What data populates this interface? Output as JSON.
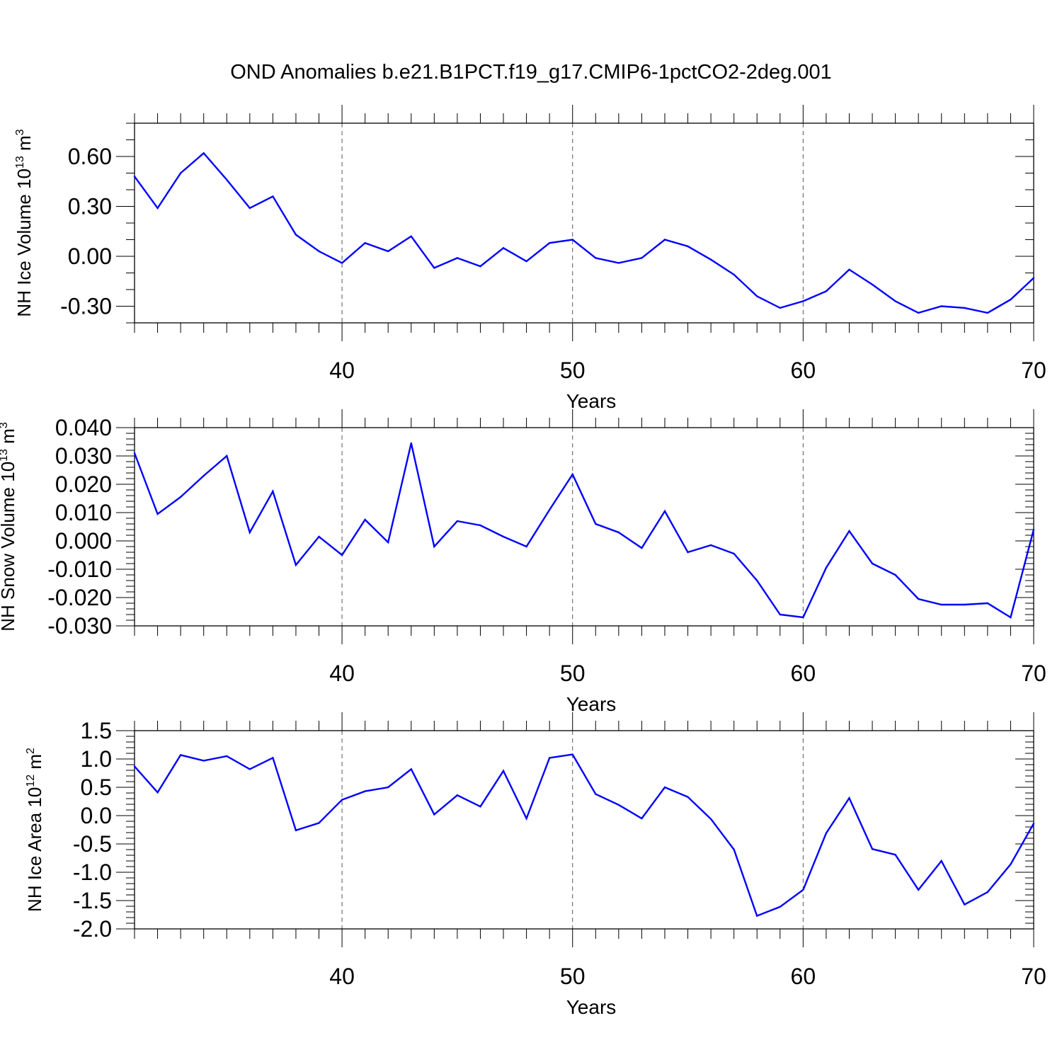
{
  "title": "OND Anomalies b.e21.B1PCT.f19_g17.CMIP6-1pctCO2-2deg.001",
  "line_color": "#0000ff",
  "chart_data": [
    {
      "type": "line",
      "id": "ice-volume",
      "ylabel": "NH Ice Volume 10",
      "ylabel_exp": "13",
      "ylabel_unit": " m",
      "ylabel_unit_exp": "3",
      "xlabel": "Years",
      "xlim": [
        31,
        70
      ],
      "ylim": [
        -0.4,
        0.8
      ],
      "yticks": [
        -0.3,
        0.0,
        0.3,
        0.6
      ],
      "ytick_labels": [
        "-0.30",
        "0.00",
        "0.30",
        "0.60"
      ],
      "yminor": 0.1,
      "xticks": [
        40,
        50,
        60,
        70
      ],
      "xtick_labels": [
        "40",
        "50",
        "60",
        "70"
      ],
      "x": [
        31,
        32,
        33,
        34,
        35,
        36,
        37,
        38,
        39,
        40,
        41,
        42,
        43,
        44,
        45,
        46,
        47,
        48,
        49,
        50,
        51,
        52,
        53,
        54,
        55,
        56,
        57,
        58,
        59,
        60,
        61,
        62,
        63,
        64,
        65,
        66,
        67,
        68,
        69,
        70
      ],
      "values": [
        0.48,
        0.29,
        0.5,
        0.62,
        0.46,
        0.29,
        0.36,
        0.13,
        0.03,
        -0.04,
        0.08,
        0.03,
        0.12,
        -0.07,
        -0.01,
        -0.06,
        0.05,
        -0.03,
        0.08,
        0.1,
        -0.01,
        -0.04,
        -0.01,
        0.1,
        0.06,
        -0.02,
        -0.11,
        -0.24,
        -0.31,
        -0.27,
        -0.21,
        -0.08,
        -0.17,
        -0.27,
        -0.34,
        -0.3,
        -0.31,
        -0.34,
        -0.26,
        -0.13
      ]
    },
    {
      "type": "line",
      "id": "snow-volume",
      "ylabel": "NH Snow Volume 10",
      "ylabel_exp": "13",
      "ylabel_unit": " m",
      "ylabel_unit_exp": "3",
      "xlabel": "Years",
      "xlim": [
        31,
        70
      ],
      "ylim": [
        -0.03,
        0.04
      ],
      "yticks": [
        -0.03,
        -0.02,
        -0.01,
        0.0,
        0.01,
        0.02,
        0.03,
        0.04
      ],
      "ytick_labels": [
        "-0.030",
        "-0.020",
        "-0.010",
        "0.000",
        "0.010",
        "0.020",
        "0.030",
        "0.040"
      ],
      "yminor": 0.002,
      "xticks": [
        40,
        50,
        60,
        70
      ],
      "xtick_labels": [
        "40",
        "50",
        "60",
        "70"
      ],
      "x": [
        31,
        32,
        33,
        34,
        35,
        36,
        37,
        38,
        39,
        40,
        41,
        42,
        43,
        44,
        45,
        46,
        47,
        48,
        49,
        50,
        51,
        52,
        53,
        54,
        55,
        56,
        57,
        58,
        59,
        60,
        61,
        62,
        63,
        64,
        65,
        66,
        67,
        68,
        69,
        70
      ],
      "values": [
        0.031,
        0.0095,
        0.0155,
        0.023,
        0.03,
        0.003,
        0.0175,
        -0.0085,
        0.0015,
        -0.005,
        0.0075,
        -0.0005,
        0.0345,
        -0.002,
        0.007,
        0.0055,
        0.0015,
        -0.002,
        0.011,
        0.0235,
        0.006,
        0.003,
        -0.0025,
        0.0105,
        -0.004,
        -0.0015,
        -0.0045,
        -0.014,
        -0.026,
        -0.027,
        -0.0095,
        0.0035,
        -0.008,
        -0.012,
        -0.0205,
        -0.0225,
        -0.0225,
        -0.022,
        -0.027,
        0.004
      ]
    },
    {
      "type": "line",
      "id": "ice-area",
      "ylabel": "NH Ice Area 10",
      "ylabel_exp": "12",
      "ylabel_unit": " m",
      "ylabel_unit_exp": "2",
      "xlabel": "Years",
      "xlim": [
        31,
        70
      ],
      "ylim": [
        -2.0,
        1.5
      ],
      "yticks": [
        -2.0,
        -1.5,
        -1.0,
        -0.5,
        0.0,
        0.5,
        1.0,
        1.5
      ],
      "ytick_labels": [
        "-2.0",
        "-1.5",
        "-1.0",
        "-0.5",
        "0.0",
        "0.5",
        "1.0",
        "1.5"
      ],
      "yminor": 0.1,
      "xticks": [
        40,
        50,
        60,
        70
      ],
      "xtick_labels": [
        "40",
        "50",
        "60",
        "70"
      ],
      "x": [
        31,
        32,
        33,
        34,
        35,
        36,
        37,
        38,
        39,
        40,
        41,
        42,
        43,
        44,
        45,
        46,
        47,
        48,
        49,
        50,
        51,
        52,
        53,
        54,
        55,
        56,
        57,
        58,
        59,
        60,
        61,
        62,
        63,
        64,
        65,
        66,
        67,
        68,
        69,
        70
      ],
      "values": [
        0.87,
        0.41,
        1.07,
        0.97,
        1.05,
        0.82,
        1.02,
        -0.26,
        -0.13,
        0.28,
        0.43,
        0.5,
        0.82,
        0.02,
        0.36,
        0.16,
        0.79,
        -0.05,
        1.02,
        1.08,
        0.38,
        0.19,
        -0.05,
        0.5,
        0.33,
        -0.06,
        -0.6,
        -1.77,
        -1.61,
        -1.31,
        -0.31,
        0.31,
        -0.59,
        -0.69,
        -1.31,
        -0.8,
        -1.57,
        -1.35,
        -0.86,
        -0.14
      ]
    }
  ]
}
